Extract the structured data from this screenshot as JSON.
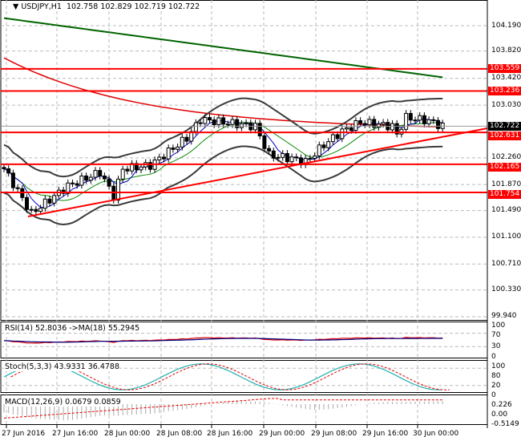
{
  "header": {
    "symbol": "USDJPY,H1",
    "ohlc": "102.758 102.829 102.719 102.722"
  },
  "price_axis": [
    "104.190",
    "103.820",
    "103.420",
    "103.030",
    "102.260",
    "101.870",
    "101.490",
    "101.100",
    "100.710",
    "100.330",
    "99.940"
  ],
  "price_values": [
    104.19,
    103.82,
    103.42,
    103.03,
    102.26,
    101.87,
    101.49,
    101.1,
    100.71,
    100.33,
    99.94
  ],
  "current_price": {
    "label": "102.722",
    "value": 102.722
  },
  "levels": [
    {
      "label": "103.559",
      "value": 103.559
    },
    {
      "label": "103.236",
      "value": 103.236
    },
    {
      "label": "102.631",
      "value": 102.631
    },
    {
      "label": "102.165",
      "value": 102.165
    },
    {
      "label": "101.754",
      "value": 101.754
    }
  ],
  "time_axis": [
    "27 Jun 2016",
    "27 Jun 16:00",
    "28 Jun 00:00",
    "28 Jun 08:00",
    "28 Jun 16:00",
    "29 Jun 00:00",
    "29 Jun 08:00",
    "29 Jun 16:00",
    "30 Jun 00:00"
  ],
  "price_path": [
    [
      0,
      102.1
    ],
    [
      6,
      101.45
    ],
    [
      14,
      101.85
    ],
    [
      21,
      102.05
    ],
    [
      24,
      101.7
    ],
    [
      26,
      102.1
    ],
    [
      32,
      102.15
    ],
    [
      36,
      102.35
    ],
    [
      40,
      102.55
    ],
    [
      43,
      102.82
    ],
    [
      55,
      102.72
    ],
    [
      58,
      102.3
    ],
    [
      63,
      102.25
    ],
    [
      66,
      102.2
    ],
    [
      70,
      102.45
    ],
    [
      74,
      102.65
    ],
    [
      78,
      102.78
    ],
    [
      85,
      102.72
    ],
    [
      86,
      102.6
    ],
    [
      88,
      102.85
    ],
    [
      93,
      102.8
    ],
    [
      96,
      102.72
    ]
  ],
  "colors": {
    "bull": "#00a000",
    "bear": "#f00000",
    "ma_long": "#006400",
    "ma_mid": "#e00000",
    "bands": "#3a3a3a",
    "levels": "#ff0000"
  },
  "rsi": {
    "title": "RSI(14) 52.8036  ->MA(18) 55.2945",
    "axis": [
      "100",
      "70",
      "30",
      "0"
    ]
  },
  "stoch": {
    "title": "Stoch(5,3,3) 43.9331 36.4788",
    "axis": [
      "100",
      "80",
      "20",
      "0"
    ]
  },
  "macd": {
    "title": "MACD(12,26,9) 0.0679 0.0859",
    "axis": [
      "0.226",
      "0.00",
      "-0.5149"
    ]
  }
}
